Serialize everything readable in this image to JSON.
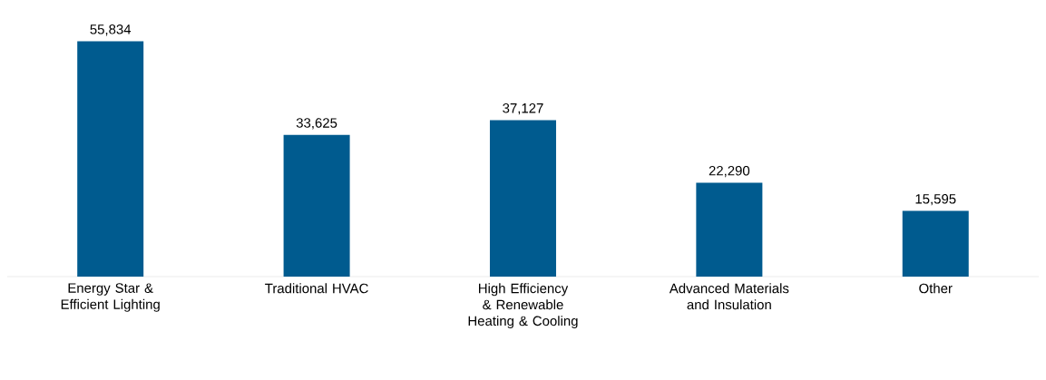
{
  "chart_data": {
    "type": "bar",
    "categories": [
      "Energy Star & Efficient Lighting",
      "Traditional HVAC",
      "High Efficiency & Renewable Heating & Cooling",
      "Advanced Materials and Insulation",
      "Other"
    ],
    "values": [
      55834,
      33625,
      37127,
      22290,
      15595
    ],
    "value_labels": [
      "55,834",
      "33,625",
      "37,127",
      "22,290",
      "15,595"
    ],
    "color": "#005b8f"
  }
}
